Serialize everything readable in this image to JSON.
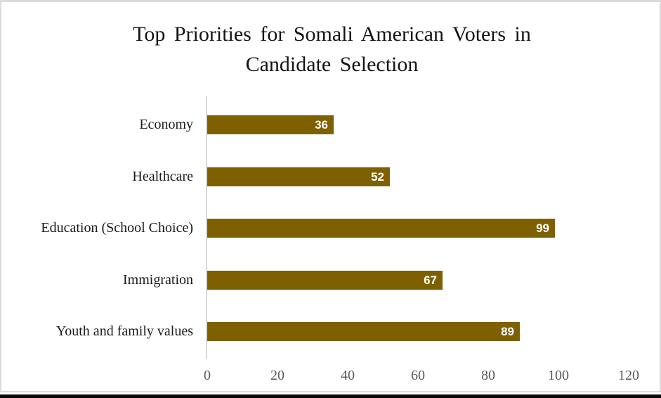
{
  "page": {
    "background": "#FFFFFF",
    "frame_border_color": "#DBDBDB",
    "bottom_rule_color": "#0A0A0A"
  },
  "chart_data": {
    "type": "bar",
    "orientation": "horizontal",
    "title": "Top Priorities for Somali American Voters in Candidate Selection",
    "title_lines": [
      "Top Priorities for Somali American Voters in",
      "Candidate Selection"
    ],
    "categories": [
      "Economy",
      "Healthcare",
      "Education (School Choice)",
      "Immigration",
      "Youth and family values"
    ],
    "values": [
      36,
      52,
      99,
      67,
      89
    ],
    "xlabel": "",
    "ylabel": "",
    "xlim": [
      0,
      120
    ],
    "x_ticks": [
      0,
      20,
      40,
      60,
      80,
      100,
      120
    ],
    "grid": false,
    "legend": false,
    "bar_color": "#7F6000",
    "value_label_color": "#FFFFFF",
    "axis_line_color": "#D9D9D9",
    "tick_label_color": "#595959",
    "category_label_color": "#1A1A1A",
    "title_color": "#141414"
  }
}
